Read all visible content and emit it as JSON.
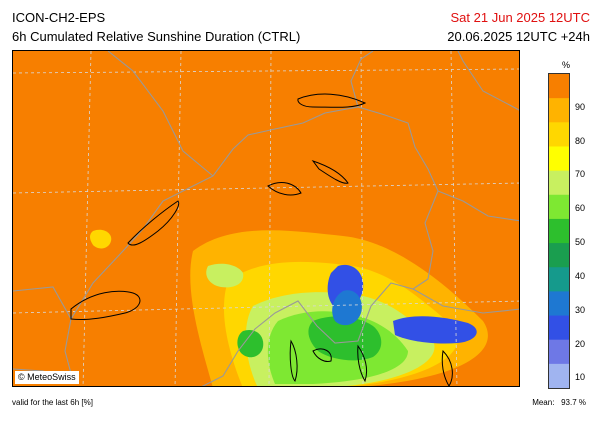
{
  "header": {
    "model": "ICON-CH2-EPS",
    "product": "6h Cumulated Relative Sunshine Duration (CTRL)",
    "valid_time": "Sat 21 Jun 2025 12UTC",
    "valid_time_color": "#e01010",
    "run": "20.06.2025 12UTC +24h"
  },
  "map": {
    "copyright": "© MeteoSwiss",
    "base_color": "#f77f00"
  },
  "legend": {
    "unit": "%",
    "ticks": [
      "90",
      "80",
      "70",
      "60",
      "50",
      "40",
      "30",
      "20",
      "10"
    ],
    "colors": [
      "#f77f00",
      "#ffb300",
      "#ffd700",
      "#ffff00",
      "#c8f060",
      "#7ee832",
      "#2dbf2d",
      "#1a9e4f",
      "#159a8c",
      "#1e78d2",
      "#3250e6",
      "#6e78e6",
      "#a0b4f0"
    ]
  },
  "footer": {
    "validity": "valid for the last 6h [%]",
    "mean_label": "Mean:",
    "mean_value": "93.7 %"
  }
}
